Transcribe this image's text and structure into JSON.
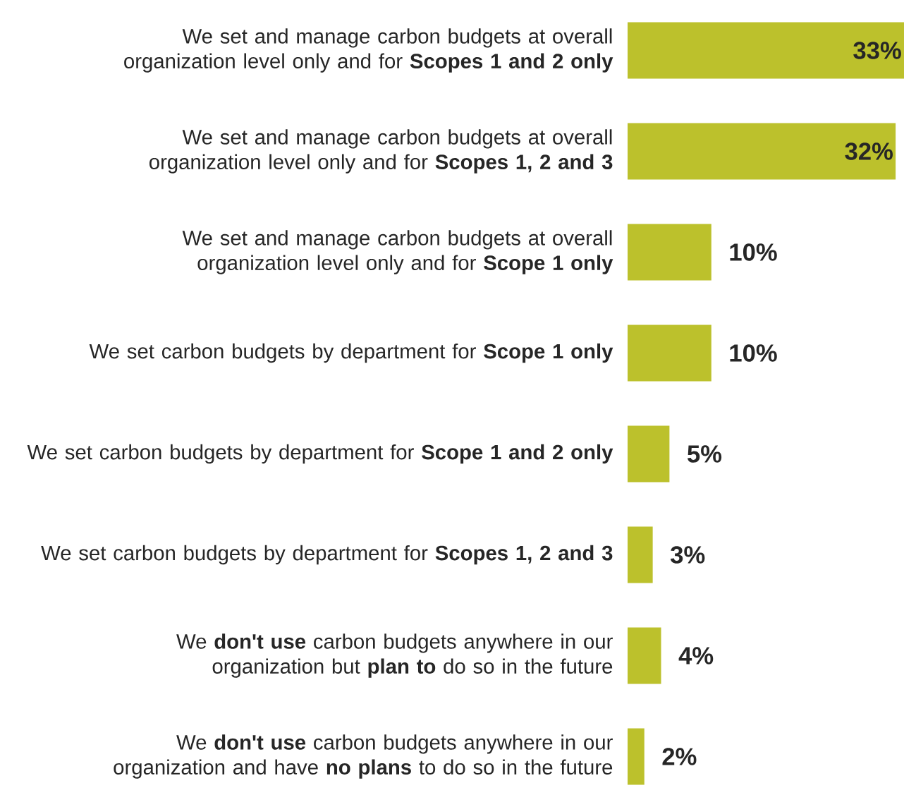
{
  "chart_data": {
    "type": "bar",
    "orientation": "horizontal",
    "color": "#bcc12c",
    "categories": [
      "We set and manage carbon budgets at overall organization level only and for **Scopes 1 and 2 only**",
      "We set and manage carbon budgets at overall organization level only and for **Scopes 1, 2 and 3**",
      "We set and manage carbon budgets at overall organization level only and for **Scope 1 only**",
      "We set carbon budgets by department for **Scope 1 only**",
      "We set carbon budgets by department for **Scope 1 and 2 only**",
      "We set carbon budgets by department for **Scopes 1, 2 and 3**",
      "We **don't use** carbon budgets anywhere in our organization but **plan to** do so in the future",
      "We **don't use** carbon budgets anywhere in our organization and have **no plans** to do so in the future"
    ],
    "values": [
      33,
      32,
      10,
      10,
      5,
      3,
      4,
      2
    ],
    "value_labels": [
      "33%",
      "32%",
      "10%",
      "10%",
      "5%",
      "3%",
      "4%",
      "2%"
    ]
  }
}
